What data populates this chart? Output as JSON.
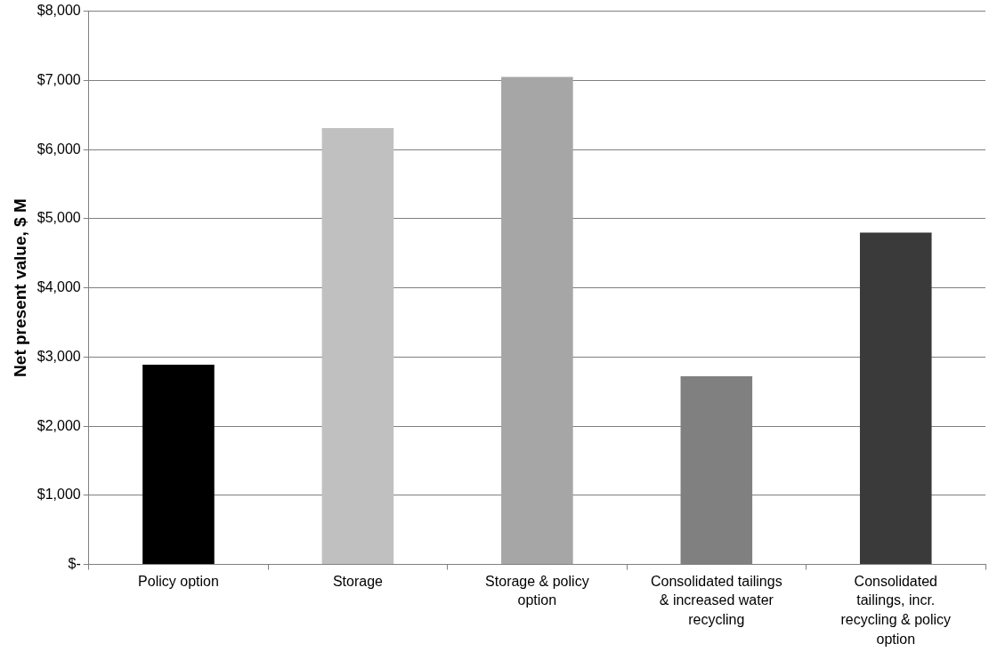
{
  "chart_data": {
    "type": "bar",
    "ylabel": "Net present value, $ M",
    "categories": [
      "Policy option",
      "Storage",
      "Storage & policy option",
      "Consolidated tailings & increased water recycling",
      "Consolidated tailings, incr. recycling & policy option"
    ],
    "values": [
      2890,
      6310,
      7050,
      2720,
      4800
    ],
    "colors": [
      "#000000",
      "#c0c0c0",
      "#a6a6a6",
      "#808080",
      "#3a3a3a"
    ],
    "ylim": [
      0,
      8000
    ],
    "yticks": [
      {
        "value": 0,
        "label": "$-"
      },
      {
        "value": 1000,
        "label": "$1,000"
      },
      {
        "value": 2000,
        "label": "$2,000"
      },
      {
        "value": 3000,
        "label": "$3,000"
      },
      {
        "value": 4000,
        "label": "$4,000"
      },
      {
        "value": 5000,
        "label": "$5,000"
      },
      {
        "value": 6000,
        "label": "$6,000"
      },
      {
        "value": 7000,
        "label": "$7,000"
      },
      {
        "value": 8000,
        "label": "$8,000"
      }
    ],
    "grid": "y",
    "legend": false
  }
}
